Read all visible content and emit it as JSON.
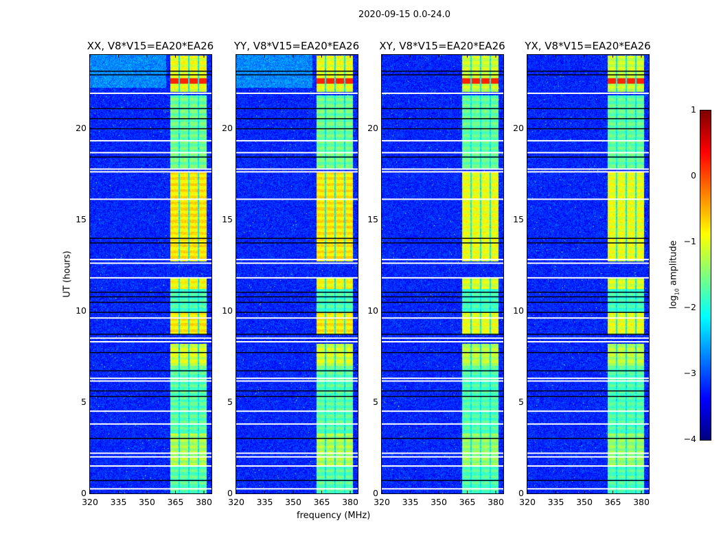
{
  "chart_data": {
    "type": "heatmap",
    "title": "2020-09-15 0.0-24.0",
    "xlabel": "frequency (MHz)",
    "ylabel": "UT (hours)",
    "xlim": [
      320,
      384
    ],
    "ylim": [
      0,
      24
    ],
    "xticks": [
      "320",
      "335",
      "350",
      "365",
      "380"
    ],
    "xtick_values": [
      320,
      335,
      350,
      365,
      380
    ],
    "yticks": [
      "0",
      "5",
      "10",
      "15",
      "20"
    ],
    "ytick_values": [
      0,
      5,
      10,
      15,
      20
    ],
    "panels": [
      {
        "title": "XX, V8*V15=EA20*EA26",
        "band_scale": 1.0,
        "top_red": true
      },
      {
        "title": "YY, V8*V15=EA20*EA26",
        "band_scale": 1.0,
        "top_red": true
      },
      {
        "title": "XY, V8*V15=EA20*EA26",
        "band_scale": 0.85,
        "top_red": true
      },
      {
        "title": "YX, V8*V15=EA20*EA26",
        "band_scale": 0.85,
        "top_red": true
      }
    ],
    "background_log_amplitude": -3.2,
    "bright_channels_mhz": [
      [
        362.0,
        366.6
      ],
      [
        367.2,
        371.6
      ],
      [
        372.2,
        376.6
      ],
      [
        377.2,
        381.4
      ]
    ],
    "band_level_by_ut": [
      {
        "ut": [
          0.0,
          1.5
        ],
        "log_amplitude": -1.7
      },
      {
        "ut": [
          1.5,
          3.3
        ],
        "log_amplitude": -1.3
      },
      {
        "ut": [
          3.3,
          7.0
        ],
        "log_amplitude": -1.7
      },
      {
        "ut": [
          7.0,
          8.2
        ],
        "log_amplitude": -1.1
      },
      {
        "ut": [
          8.7,
          9.9
        ],
        "log_amplitude": -0.8
      },
      {
        "ut": [
          9.9,
          11.2
        ],
        "log_amplitude": -1.8
      },
      {
        "ut": [
          11.2,
          11.8
        ],
        "log_amplitude": -0.9
      },
      {
        "ut": [
          12.7,
          17.6
        ],
        "log_amplitude": -0.8
      },
      {
        "ut": [
          17.8,
          21.8
        ],
        "log_amplitude": -1.6
      },
      {
        "ut": [
          22.0,
          24.0
        ],
        "log_amplitude": -1.0
      }
    ],
    "flagged_ut_white": [
      0.25,
      1.5,
      2.0,
      2.2,
      3.8,
      4.5,
      6.15,
      6.3,
      8.3,
      8.5,
      9.6,
      11.8,
      12.6,
      12.8,
      16.1,
      17.6,
      17.75,
      18.65,
      19.3,
      21.9
    ],
    "dark_ut_rows": [
      0.7,
      3.0,
      5.3,
      5.6,
      6.7,
      7.7,
      8.7,
      9.9,
      10.45,
      10.75,
      11.0,
      13.7,
      13.95,
      18.4,
      19.95,
      20.5,
      21.05,
      22.9,
      23.1
    ],
    "colorbar": {
      "label": "log10 amplitude",
      "label_base": "log",
      "label_sub": "10",
      "label_rest": " amplitude",
      "range": [
        -4,
        1
      ],
      "ticks": [
        "1",
        "0",
        "−1",
        "−2",
        "−3",
        "−4"
      ],
      "tick_values": [
        1,
        0,
        -1,
        -2,
        -3,
        -4
      ],
      "colormap": "jet"
    }
  }
}
